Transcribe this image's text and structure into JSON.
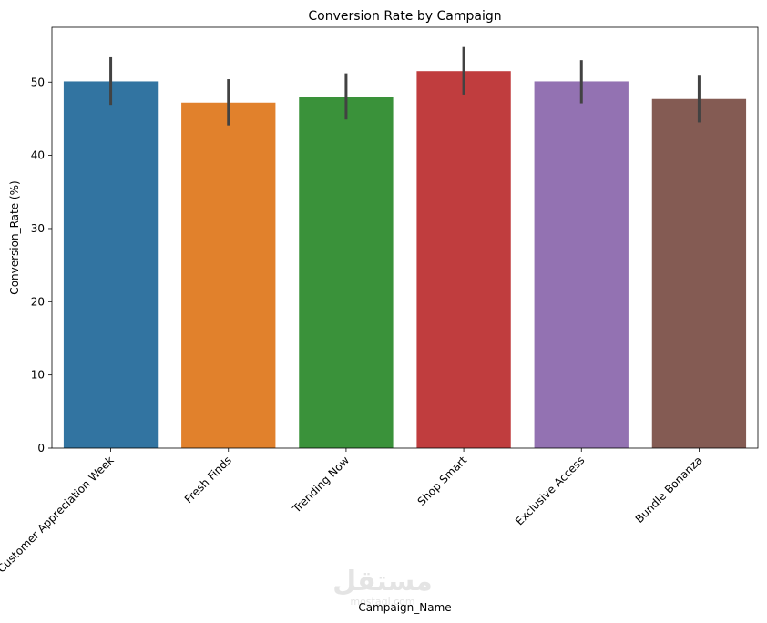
{
  "chart_data": {
    "type": "bar",
    "title": "Conversion Rate by Campaign",
    "xlabel": "Campaign_Name",
    "ylabel": "Conversion_Rate (%)",
    "categories": [
      "Customer Appreciation Week",
      "Fresh Finds",
      "Trending Now",
      "Shop Smart",
      "Exclusive Access",
      "Bundle Bonanza"
    ],
    "values": [
      50.1,
      47.2,
      48.0,
      51.5,
      50.1,
      47.7
    ],
    "error_low": [
      46.9,
      44.1,
      44.9,
      48.3,
      47.1,
      44.5
    ],
    "error_high": [
      53.4,
      50.4,
      51.2,
      54.8,
      53.0,
      51.0
    ],
    "colors": [
      "#3274a1",
      "#e1812c",
      "#3a923a",
      "#c03d3e",
      "#9372b2",
      "#845b53"
    ],
    "errorbar_color": "#424242",
    "ylim": [
      0,
      57.5
    ],
    "yticks": [
      0,
      10,
      20,
      30,
      40,
      50
    ],
    "xtick_rotation": 45,
    "grid": false
  },
  "watermark": {
    "text": "مستقل",
    "subtext": "mostaql.com"
  }
}
